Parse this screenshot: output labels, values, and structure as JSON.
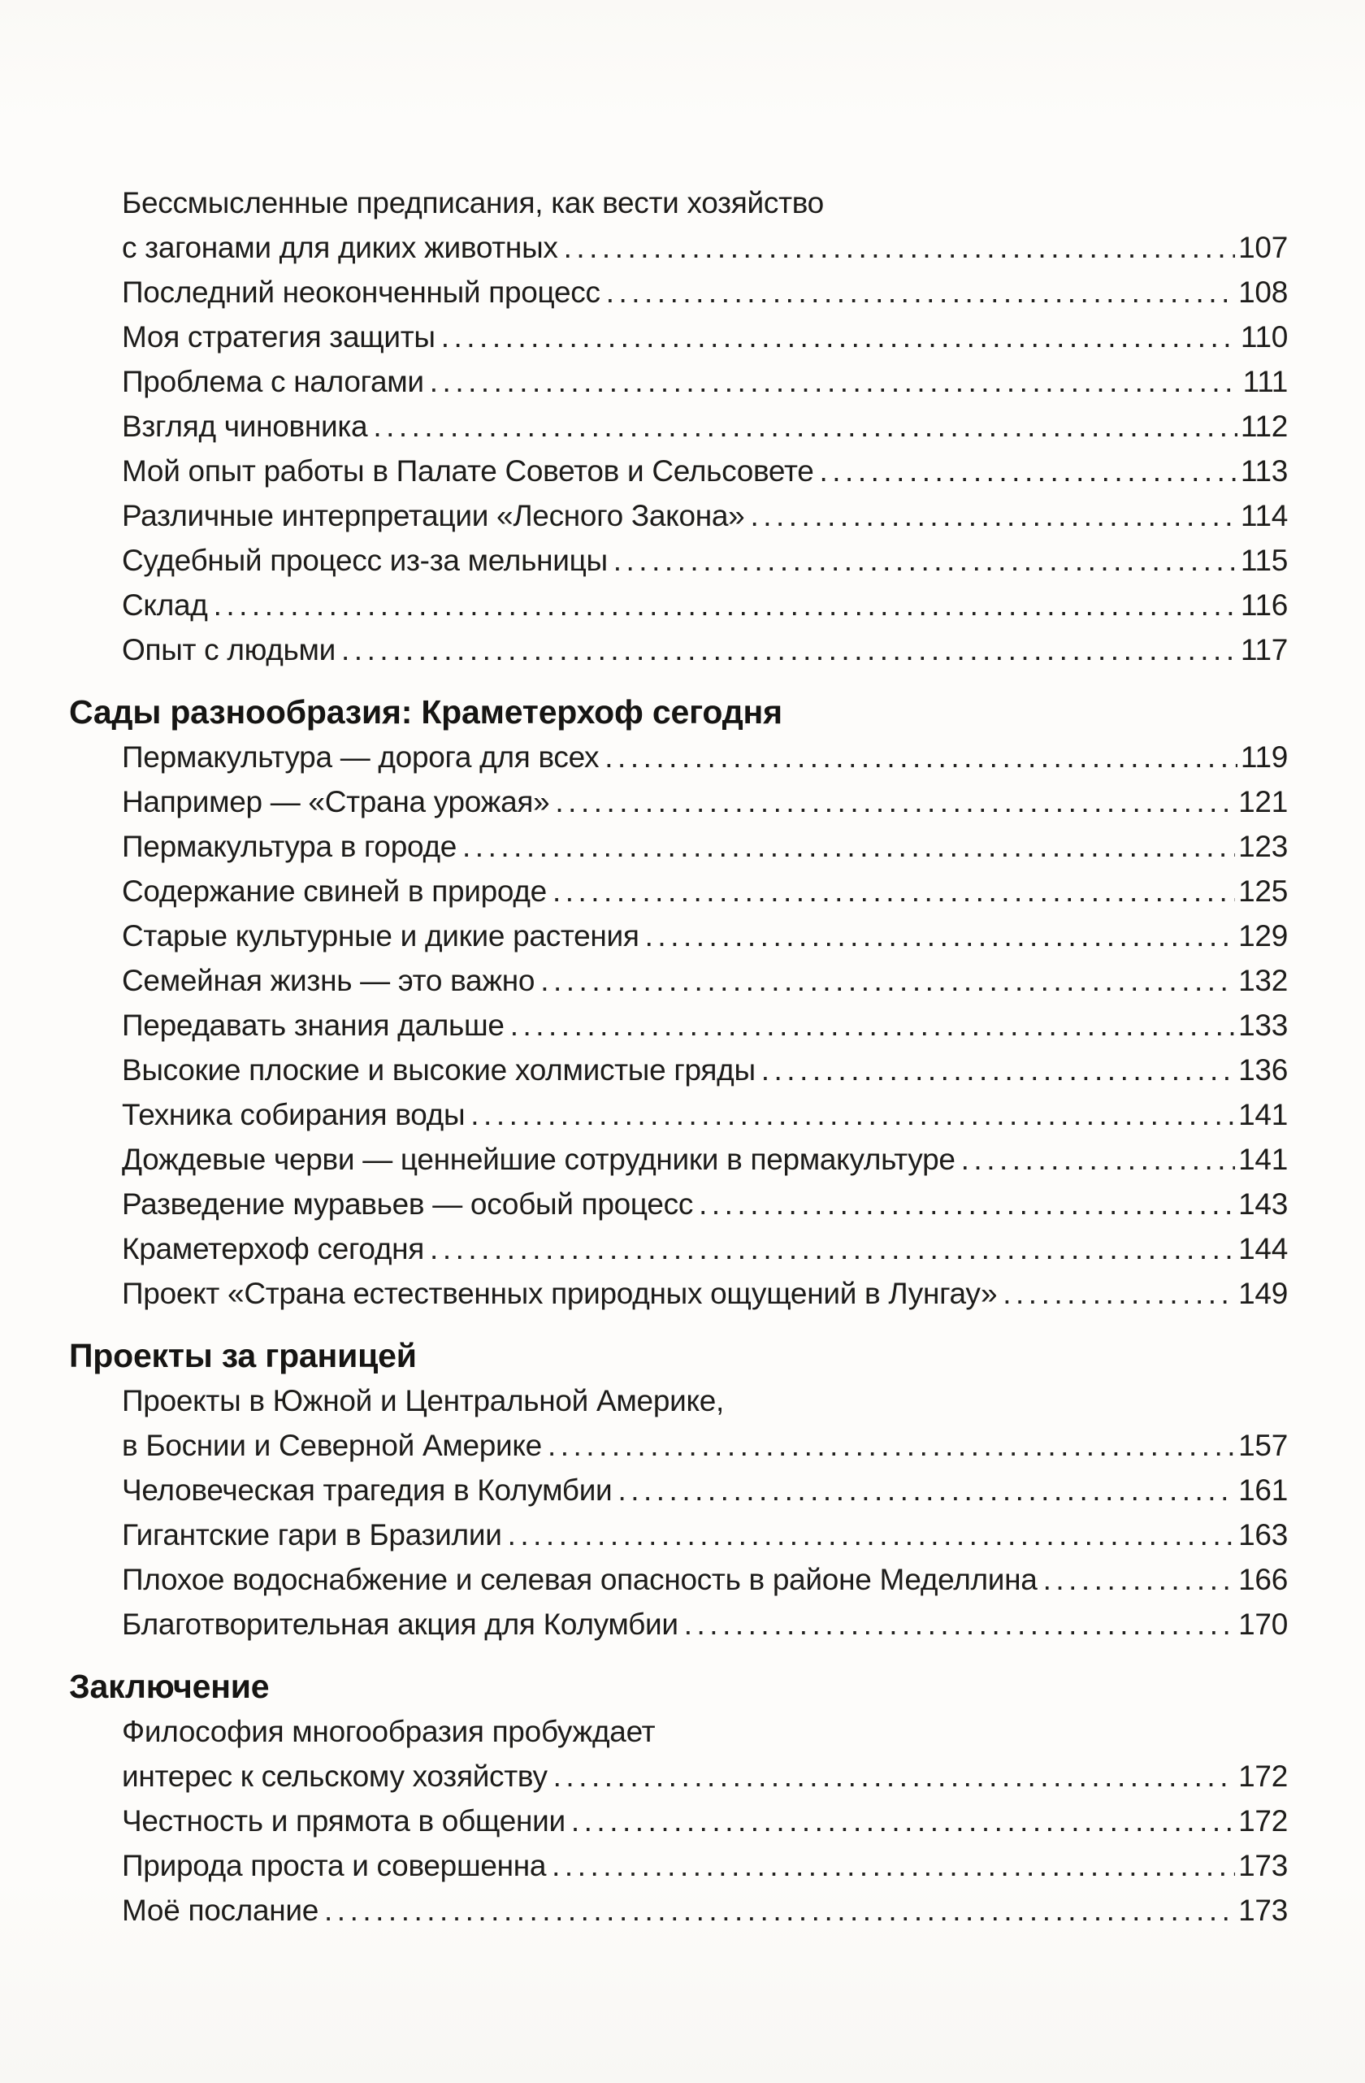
{
  "toc": {
    "items": [
      {
        "kind": "wrap",
        "text": "Бессмысленные предписания, как вести хозяйство"
      },
      {
        "kind": "entry",
        "text": "с загонами для диких животных",
        "page": "107"
      },
      {
        "kind": "entry",
        "text": "Последний неоконченный процесс",
        "page": "108"
      },
      {
        "kind": "entry",
        "text": "Моя стратегия защиты",
        "page": "110"
      },
      {
        "kind": "entry",
        "text": "Проблема с налогами",
        "page": "111"
      },
      {
        "kind": "entry",
        "text": "Взгляд чиновника",
        "page": "112"
      },
      {
        "kind": "entry",
        "text": "Мой опыт работы в Палате Советов и Сельсовете",
        "page": "113"
      },
      {
        "kind": "entry",
        "text": "Различные интерпретации «Лесного Закона»",
        "page": "114"
      },
      {
        "kind": "entry",
        "text": "Судебный процесс из-за мельницы",
        "page": "115"
      },
      {
        "kind": "entry",
        "text": "Склад",
        "page": "116"
      },
      {
        "kind": "entry",
        "text": "Опыт с людьми",
        "page": "117"
      },
      {
        "kind": "header",
        "text": "Сады разнообразия: Краметерхоф сегодня"
      },
      {
        "kind": "entry",
        "text": "Пермакультура — дорога для всех",
        "page": "119"
      },
      {
        "kind": "entry",
        "text": "Например — «Страна урожая»",
        "page": "121"
      },
      {
        "kind": "entry",
        "text": "Пермакультура в городе",
        "page": "123"
      },
      {
        "kind": "entry",
        "text": "Содержание свиней в природе",
        "page": "125"
      },
      {
        "kind": "entry",
        "text": "Старые культурные и дикие растения",
        "page": "129"
      },
      {
        "kind": "entry",
        "text": "Семейная жизнь — это важно",
        "page": "132"
      },
      {
        "kind": "entry",
        "text": "Передавать знания дальше",
        "page": "133"
      },
      {
        "kind": "entry",
        "text": "Высокие плоские и высокие холмистые гряды",
        "page": "136"
      },
      {
        "kind": "entry",
        "text": "Техника собирания воды",
        "page": "141"
      },
      {
        "kind": "entry",
        "text": "Дождевые черви — ценнейшие сотрудники в пермакультуре",
        "page": "141"
      },
      {
        "kind": "entry",
        "text": "Разведение муравьев — особый процесс",
        "page": "143"
      },
      {
        "kind": "entry",
        "text": "Краметерхоф сегодня",
        "page": "144"
      },
      {
        "kind": "entry",
        "text": "Проект «Страна естественных природных ощущений в Лунгау»",
        "page": "149"
      },
      {
        "kind": "header",
        "text": "Проекты за границей"
      },
      {
        "kind": "wrap",
        "text": "Проекты в Южной и Центральной Америке,"
      },
      {
        "kind": "entry",
        "text": "в Боснии и Северной Америке",
        "page": "157"
      },
      {
        "kind": "entry",
        "text": "Человеческая трагедия в Колумбии",
        "page": "161"
      },
      {
        "kind": "entry",
        "text": "Гигантские гари в Бразилии",
        "page": "163"
      },
      {
        "kind": "entry",
        "text": "Плохое водоснабжение и селевая опасность в районе Меделлина",
        "page": "166"
      },
      {
        "kind": "entry",
        "text": "Благотворительная акция для Колумбии",
        "page": "170"
      },
      {
        "kind": "header",
        "text": "Заключение"
      },
      {
        "kind": "wrap",
        "text": "Философия многообразия пробуждает"
      },
      {
        "kind": "entry",
        "text": "интерес к сельскому хозяйству",
        "page": "172"
      },
      {
        "kind": "entry",
        "text": "Честность и прямота в общении",
        "page": "172"
      },
      {
        "kind": "entry",
        "text": "Природа проста и совершенна",
        "page": "173"
      },
      {
        "kind": "entry",
        "text": "Моё послание",
        "page": "173"
      }
    ]
  }
}
